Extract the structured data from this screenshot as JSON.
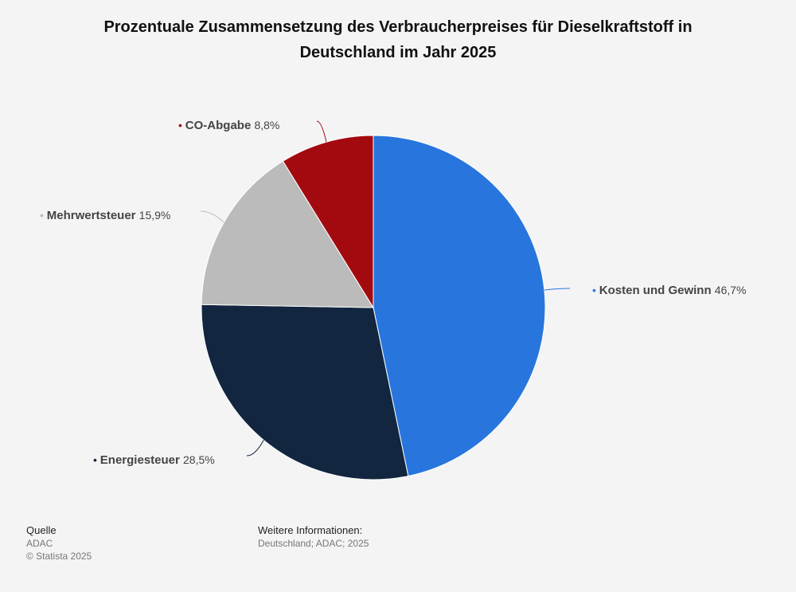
{
  "chart_data": {
    "type": "pie",
    "title": "Prozentuale Zusammensetzung des Verbraucherpreises für Dieselkraftstoff in Deutschland im Jahr 2025",
    "title_lines": [
      "Prozentuale Zusammensetzung des Verbraucherpreises für Dieselkraftstoff in",
      "Deutschland im Jahr 2025"
    ],
    "slices": [
      {
        "label": "Kosten und Gewinn",
        "value": 46.7,
        "value_label": "46,7%",
        "color": "#2876dd"
      },
      {
        "label": "Energiesteuer",
        "value": 28.5,
        "value_label": "28,5%",
        "color": "#12263f"
      },
      {
        "label": "Mehrwertsteuer",
        "value": 15.9,
        "value_label": "15,9%",
        "color": "#bbbbbb"
      },
      {
        "label": "CO-Abgabe",
        "value": 8.8,
        "value_label": "8,8%",
        "color": "#a30a0f"
      }
    ]
  },
  "footer": {
    "source_heading": "Quelle",
    "source": "ADAC",
    "copyright": "© Statista 2025",
    "info_heading": "Weitere Informationen:",
    "info": "Deutschland; ADAC; 2025"
  }
}
